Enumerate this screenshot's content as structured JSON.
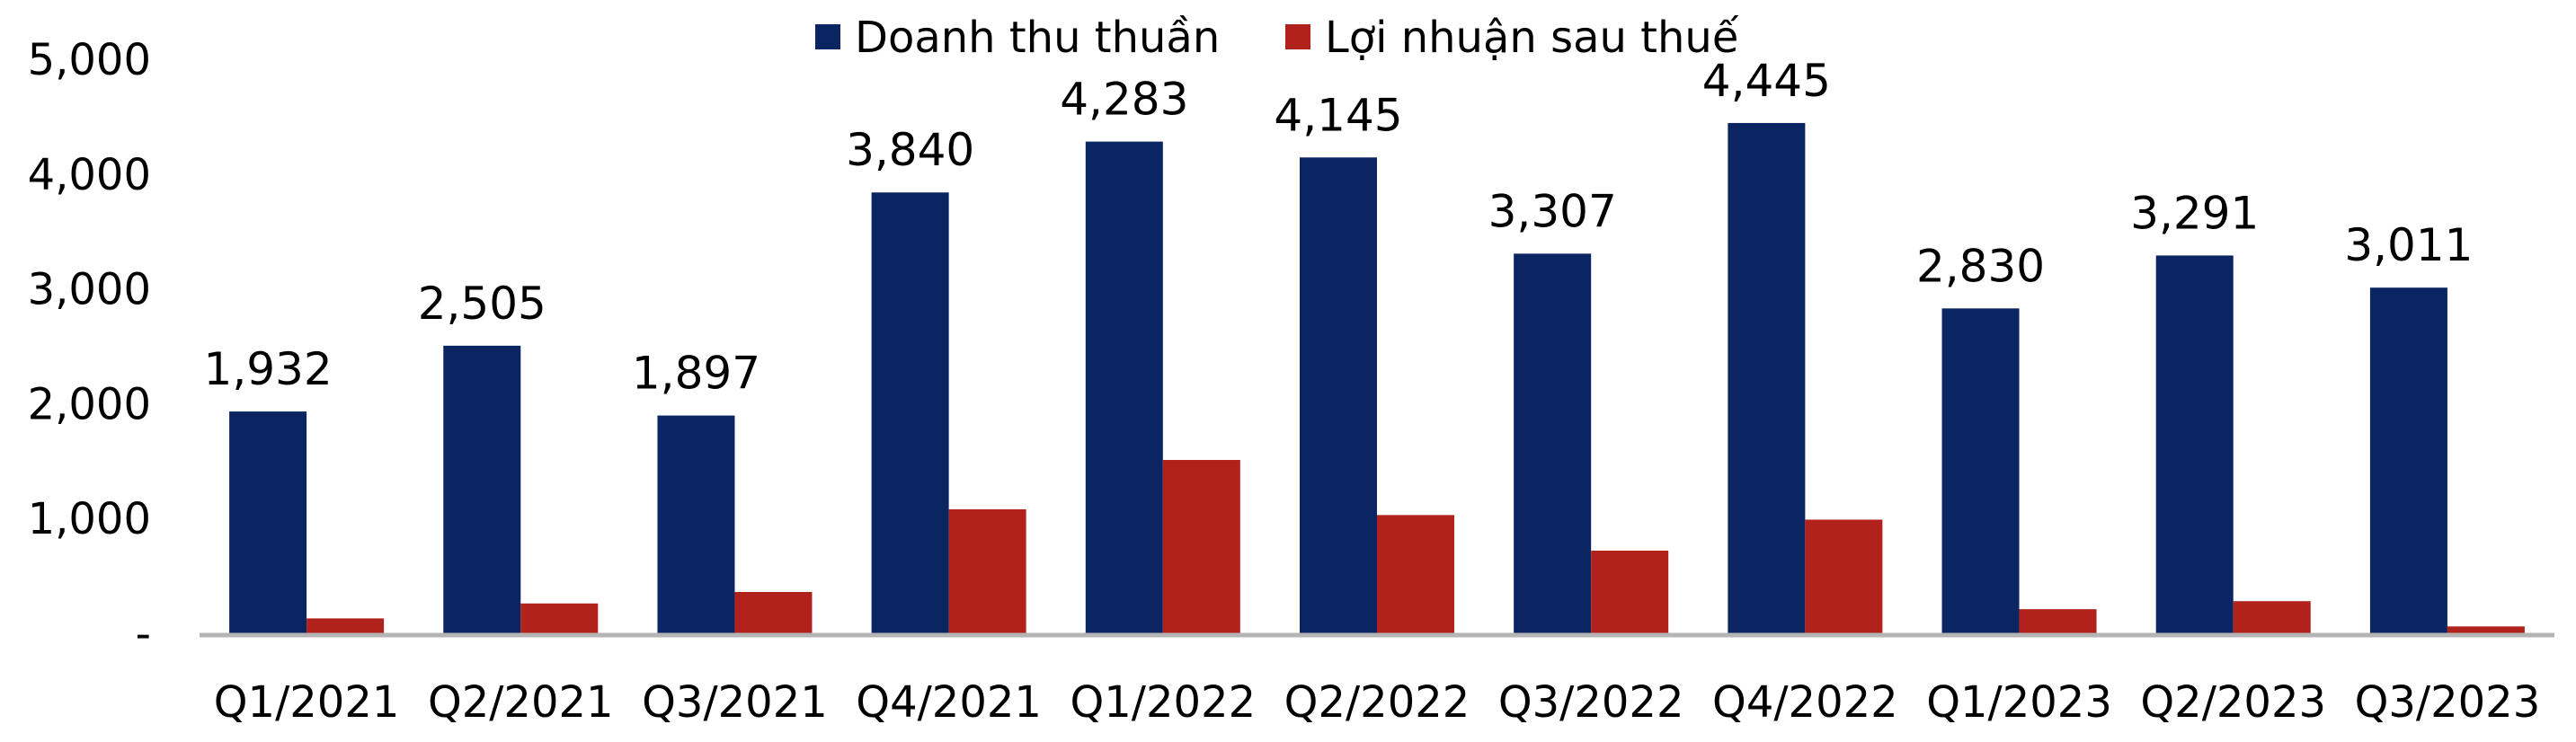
{
  "chart_data": {
    "type": "bar",
    "categories": [
      "Q1/2021",
      "Q2/2021",
      "Q3/2021",
      "Q4/2021",
      "Q1/2022",
      "Q2/2022",
      "Q3/2022",
      "Q4/2022",
      "Q1/2023",
      "Q2/2023",
      "Q3/2023"
    ],
    "series": [
      {
        "name": "Doanh thu thuần",
        "color": "#0b2462",
        "values": [
          1932,
          2505,
          1897,
          3840,
          4283,
          4145,
          3307,
          4445,
          2830,
          3291,
          3011
        ],
        "labels": [
          "1,932",
          "2,505",
          "1,897",
          "3,840",
          "4,283",
          "4,145",
          "3,307",
          "4,445",
          "2,830",
          "3,291",
          "3,011"
        ]
      },
      {
        "name": "Lợi nhuận sau thuế",
        "color": "#b0221b",
        "values": [
          130,
          260,
          360,
          1080,
          1510,
          1030,
          720,
          990,
          210,
          280,
          60
        ]
      }
    ],
    "ylim": [
      0,
      5000
    ],
    "yticks": [
      0,
      1000,
      2000,
      3000,
      4000,
      5000
    ],
    "ytick_labels": [
      "-",
      "1,000",
      "2,000",
      "3,000",
      "4,000",
      "5,000"
    ],
    "legend": "top-center",
    "grid": false
  }
}
